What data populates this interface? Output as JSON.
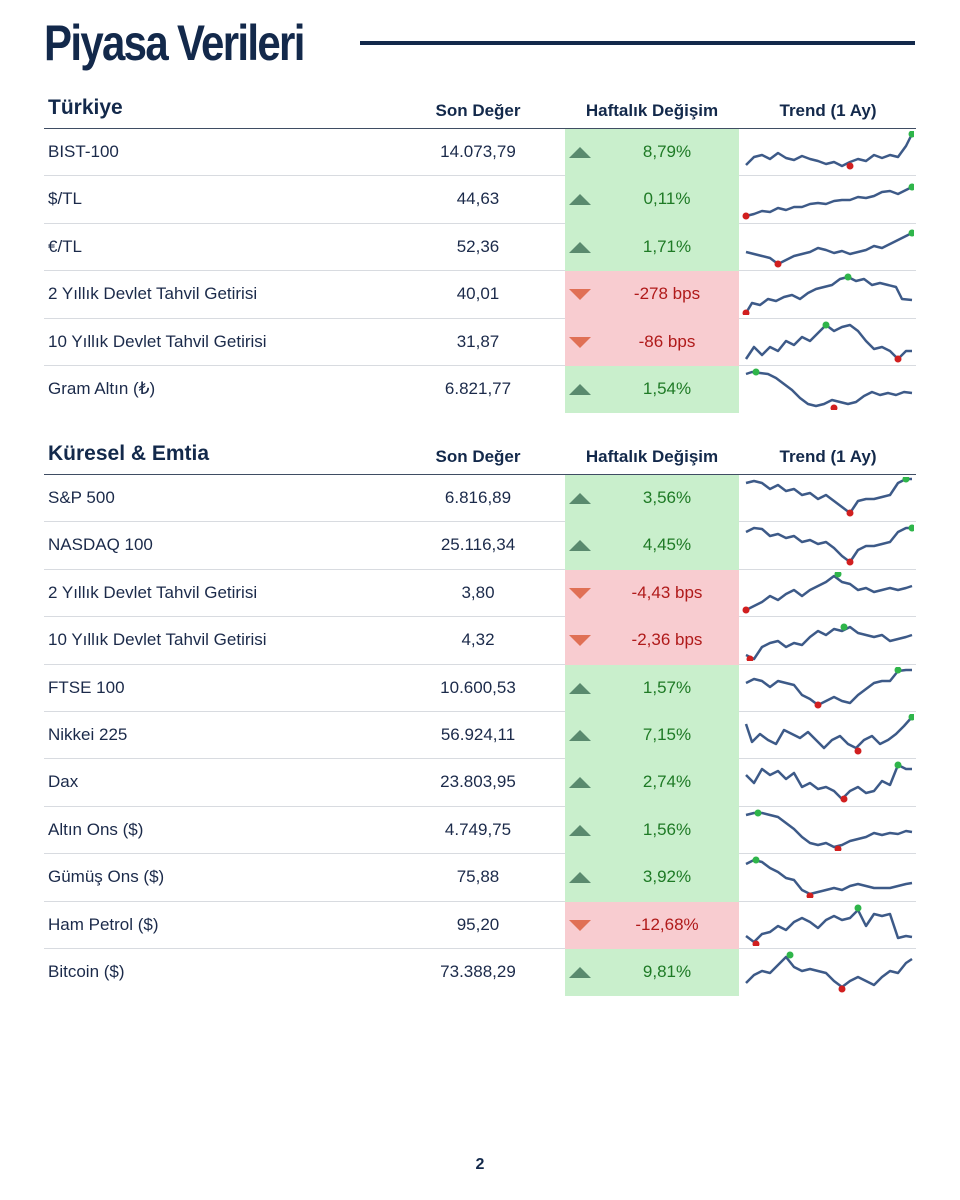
{
  "title": "Piyasa Verileri",
  "page_number": "2",
  "colors": {
    "up_bg": "#c9efcc",
    "down_bg": "#f8ccd0",
    "line": "#3d5a88",
    "max_dot": "#2fb54a",
    "min_dot": "#d11f1f"
  },
  "columns": {
    "value": "Son Değer",
    "change": "Haftalık Değişim",
    "trend": "Trend (1 Ay)"
  },
  "sections": [
    {
      "title": "Türkiye",
      "rows": [
        {
          "name": "BIST-100",
          "value": "14.073,79",
          "change": "8,79%",
          "direction": "up",
          "trend_icon": "sparkline"
        },
        {
          "name": "$/TL",
          "value": "44,63",
          "change": "0,11%",
          "direction": "up",
          "trend_icon": "sparkline"
        },
        {
          "name": "€/TL",
          "value": "52,36",
          "change": "1,71%",
          "direction": "up",
          "trend_icon": "sparkline"
        },
        {
          "name": "2 Yıllık Devlet Tahvil Getirisi",
          "value": "40,01",
          "change": "-278 bps",
          "direction": "down",
          "trend_icon": "sparkline"
        },
        {
          "name": "10 Yıllık Devlet Tahvil Getirisi",
          "value": "31,87",
          "change": "-86 bps",
          "direction": "down",
          "trend_icon": "sparkline"
        },
        {
          "name": "Gram Altın (₺)",
          "value": "6.821,77",
          "change": "1,54%",
          "direction": "up",
          "trend_icon": "sparkline"
        }
      ]
    },
    {
      "title": "Küresel & Emtia",
      "rows": [
        {
          "name": "S&P 500",
          "value": "6.816,89",
          "change": "3,56%",
          "direction": "up",
          "trend_icon": "sparkline"
        },
        {
          "name": "NASDAQ 100",
          "value": "25.116,34",
          "change": "4,45%",
          "direction": "up",
          "trend_icon": "sparkline"
        },
        {
          "name": "2 Yıllık Devlet Tahvil Getirisi",
          "value": "3,80",
          "change": "-4,43 bps",
          "direction": "down",
          "trend_icon": "sparkline"
        },
        {
          "name": "10 Yıllık Devlet Tahvil Getirisi",
          "value": "4,32",
          "change": "-2,36 bps",
          "direction": "down",
          "trend_icon": "sparkline"
        },
        {
          "name": "FTSE 100",
          "value": "10.600,53",
          "change": "1,57%",
          "direction": "up",
          "trend_icon": "sparkline"
        },
        {
          "name": "Nikkei 225",
          "value": "56.924,11",
          "change": "7,15%",
          "direction": "up",
          "trend_icon": "sparkline"
        },
        {
          "name": "Dax",
          "value": "23.803,95",
          "change": "2,74%",
          "direction": "up",
          "trend_icon": "sparkline"
        },
        {
          "name": "Altın Ons ($)",
          "value": "4.749,75",
          "change": "1,56%",
          "direction": "up",
          "trend_icon": "sparkline"
        },
        {
          "name": "Gümüş Ons ($)",
          "value": "75,88",
          "change": "3,92%",
          "direction": "up",
          "trend_icon": "sparkline"
        },
        {
          "name": "Ham Petrol ($)",
          "value": "95,20",
          "change": "-12,68%",
          "direction": "down",
          "trend_icon": "sparkline"
        },
        {
          "name": "Bitcoin ($)",
          "value": "73.388,29",
          "change": "9,81%",
          "direction": "up",
          "trend_icon": "sparkline"
        }
      ]
    }
  ]
}
